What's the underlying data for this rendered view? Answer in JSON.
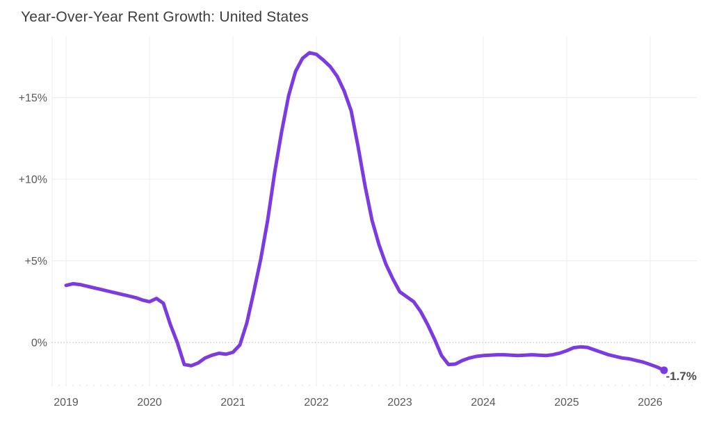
{
  "header": {
    "title": "Year-Over-Year Rent Growth: United States"
  },
  "chart_data": {
    "type": "line",
    "title": "Year-Over-Year Rent Growth: United States",
    "series": [
      {
        "name": "United States year-over-year rent growth",
        "unit": "%",
        "frequency": "monthly",
        "start_year": 2019,
        "start_month": 1,
        "values": [
          3.5,
          3.6,
          3.55,
          3.45,
          3.35,
          3.25,
          3.15,
          3.05,
          2.95,
          2.85,
          2.75,
          2.6,
          2.5,
          2.7,
          2.4,
          1.1,
          0.0,
          -1.35,
          -1.42,
          -1.25,
          -0.95,
          -0.78,
          -0.66,
          -0.72,
          -0.6,
          -0.15,
          1.2,
          3.1,
          5.1,
          7.5,
          10.4,
          12.9,
          15.1,
          16.6,
          17.4,
          17.75,
          17.65,
          17.3,
          16.9,
          16.3,
          15.4,
          14.2,
          12.0,
          9.6,
          7.5,
          6.0,
          4.8,
          3.9,
          3.1,
          2.8,
          2.5,
          1.9,
          1.1,
          0.2,
          -0.8,
          -1.35,
          -1.32,
          -1.1,
          -0.95,
          -0.85,
          -0.8,
          -0.78,
          -0.75,
          -0.75,
          -0.78,
          -0.8,
          -0.78,
          -0.75,
          -0.78,
          -0.8,
          -0.75,
          -0.65,
          -0.5,
          -0.32,
          -0.27,
          -0.3,
          -0.45,
          -0.6,
          -0.75,
          -0.85,
          -0.95,
          -1.0,
          -1.1,
          -1.2,
          -1.35,
          -1.5,
          -1.7
        ]
      }
    ],
    "x_ticks": [
      "2019",
      "2020",
      "2021",
      "2022",
      "2023",
      "2024",
      "2025",
      "2026"
    ],
    "y_ticks": [
      {
        "label": "+15%",
        "value": 15
      },
      {
        "label": "+10%",
        "value": 10
      },
      {
        "label": "+5%",
        "value": 5
      },
      {
        "label": "0%",
        "value": 0
      }
    ],
    "ylim": [
      -2.6,
      18.8
    ],
    "grid": true,
    "legend": "none",
    "zero_line_style": "dotted",
    "end_label": "-1.7%",
    "latest_value": -1.7,
    "colors": {
      "line": "#7c3be0",
      "grid": "#ececec",
      "zero_line": "#c4c4c4",
      "tick_text": "#595959",
      "title_text": "#3d3d3d",
      "end_label_text": "#4a4a4a"
    }
  }
}
